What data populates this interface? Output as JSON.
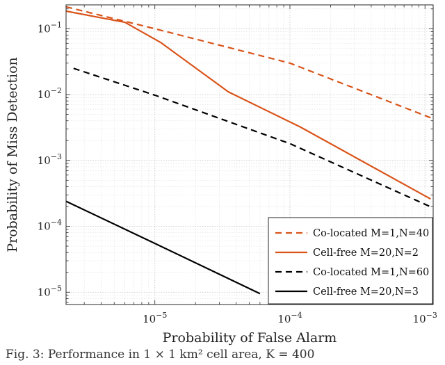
{
  "chart_data": {
    "type": "line",
    "xlabel": "Probability of False Alarm",
    "ylabel": "Probability of Miss Detection",
    "xscale": "log",
    "yscale": "log",
    "xlim": [
      2.2e-06,
      0.00115
    ],
    "ylim": [
      6.5e-06,
      0.23
    ],
    "grid": true,
    "legend_position": "bottom-right",
    "x_ticks": [
      {
        "value": 1e-05,
        "mantissa": "10",
        "exponent": "−5"
      },
      {
        "value": 0.0001,
        "mantissa": "10",
        "exponent": "−4"
      },
      {
        "value": 0.001,
        "mantissa": "10",
        "exponent": "−3"
      }
    ],
    "y_ticks": [
      {
        "value": 1e-05,
        "mantissa": "10",
        "exponent": "−5"
      },
      {
        "value": 0.0001,
        "mantissa": "10",
        "exponent": "−4"
      },
      {
        "value": 0.001,
        "mantissa": "10",
        "exponent": "−3"
      },
      {
        "value": 0.01,
        "mantissa": "10",
        "exponent": "−2"
      },
      {
        "value": 0.1,
        "mantissa": "10",
        "exponent": "−1"
      }
    ],
    "series": [
      {
        "name": "Co-located M=1,N=40",
        "color": "#d95319",
        "dash": "dashed",
        "x": [
          2.2e-06,
          1e-05,
          0.0001,
          0.00115
        ],
        "y": [
          0.215,
          0.1,
          0.03,
          0.0043
        ]
      },
      {
        "name": "Cell-free M=20,N=2",
        "color": "#d95319",
        "dash": "solid",
        "x": [
          2.2e-06,
          6e-06,
          1.1e-05,
          3.5e-05,
          0.00012,
          0.0011
        ],
        "y": [
          0.185,
          0.125,
          0.062,
          0.011,
          0.0032,
          0.00026
        ]
      },
      {
        "name": "Co-located M=1,N=60",
        "color": "#000000",
        "dash": "dashed",
        "x": [
          2.5e-06,
          1e-05,
          0.0001,
          0.00115
        ],
        "y": [
          0.025,
          0.0098,
          0.0018,
          0.00019
        ]
      },
      {
        "name": "Cell-free M=20,N=3",
        "color": "#000000",
        "dash": "solid",
        "x": [
          2.2e-06,
          1e-05,
          6e-05
        ],
        "y": [
          0.00024,
          5.5e-05,
          9.5e-06
        ]
      }
    ]
  },
  "caption": "Fig. 3: Performance in 1 × 1 km² cell area, K = 400"
}
